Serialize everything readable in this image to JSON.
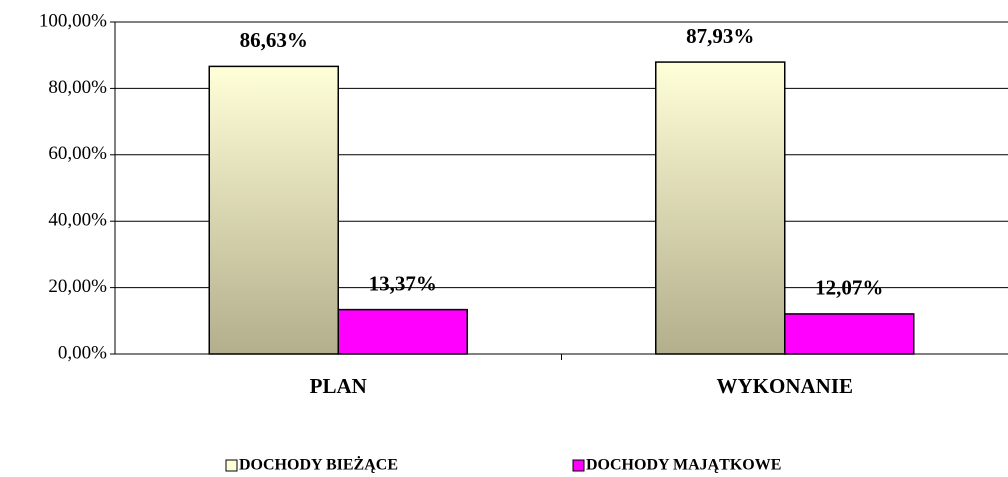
{
  "chart_data": {
    "type": "bar",
    "categories": [
      "PLAN",
      "WYKONANIE"
    ],
    "series": [
      {
        "name": "DOCHODY BIEŻĄCE",
        "color": "#ffffd8",
        "values": [
          86.63,
          87.93
        ],
        "value_labels": [
          "86,63%",
          "87,93%"
        ]
      },
      {
        "name": "DOCHODY MAJĄTKOWE",
        "color": "#ff00ff",
        "values": [
          13.37,
          12.07
        ],
        "value_labels": [
          "13,37%",
          "12,07%"
        ]
      }
    ],
    "ylim": [
      0,
      100
    ],
    "yticks": [
      {
        "value": 0,
        "label": "0,00%"
      },
      {
        "value": 20,
        "label": "20,00%"
      },
      {
        "value": 40,
        "label": "40,00%"
      },
      {
        "value": 60,
        "label": "60,00%"
      },
      {
        "value": 80,
        "label": "80,00%"
      },
      {
        "value": 100,
        "label": "100,00%"
      }
    ],
    "grid": true,
    "legend": "bottom"
  }
}
